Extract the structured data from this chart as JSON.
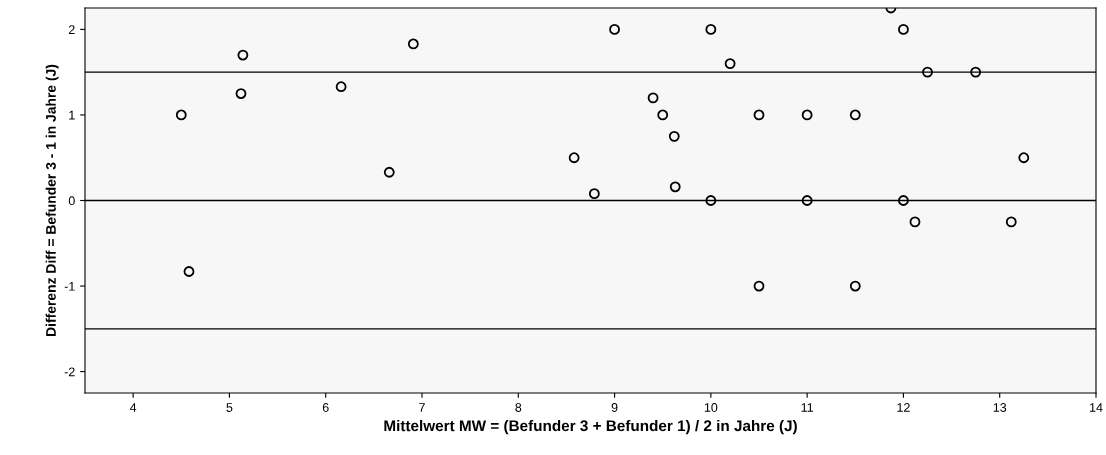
{
  "chart_data": {
    "type": "scatter",
    "xlabel": "Mittelwert MW = (Befunder 3 + Befunder 1) / 2 in Jahre (J)",
    "ylabel": "Differenz Diff = Befunder 3 - 1 in Jahre (J)",
    "series": [
      {
        "color": "#000000",
        "marker": "circle",
        "x": [
          4.5,
          4.58,
          5.12,
          5.14,
          6.16,
          6.66,
          6.91,
          8.58,
          8.79,
          9.0,
          9.4,
          9.5,
          9.62,
          9.63,
          10.0,
          10.0,
          10.2,
          10.5,
          10.5,
          11.0,
          11.0,
          11.5,
          11.5,
          11.87,
          12.0,
          12.0,
          12.12,
          12.25,
          12.75,
          13.12,
          13.25
        ],
        "values": [
          1.0,
          -0.83,
          1.25,
          1.7,
          1.33,
          0.33,
          1.83,
          0.5,
          0.08,
          2.0,
          1.2,
          1.0,
          0.75,
          0.16,
          2.0,
          0.0,
          1.6,
          1.0,
          -1.0,
          1.0,
          0.0,
          1.0,
          -1.0,
          2.25,
          2.0,
          0.0,
          -0.25,
          1.5,
          1.5,
          -0.25,
          0.5
        ]
      }
    ],
    "xlim": [
      3.5,
      14
    ],
    "ylim": [
      -2.25,
      2.25
    ],
    "xticks": [
      4,
      5,
      6,
      7,
      8,
      9,
      10,
      11,
      12,
      13,
      14
    ],
    "yticks": [
      -2,
      -1,
      0,
      1,
      2
    ],
    "ref_lines": [
      {
        "axis": "y",
        "value": 1.5,
        "color": "#000000"
      },
      {
        "axis": "y",
        "value": 0,
        "color": "#000000"
      },
      {
        "axis": "y",
        "value": -1.5,
        "color": "#000000"
      }
    ],
    "grid": false,
    "legend": false
  }
}
